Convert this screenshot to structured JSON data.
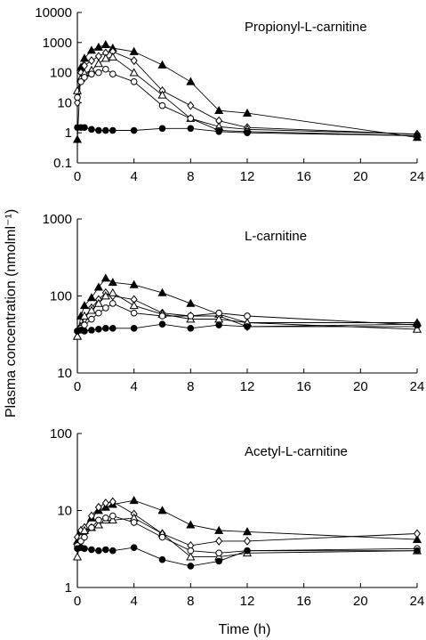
{
  "figure": {
    "ylabel": "Plasma concentration (nmolml⁻¹)",
    "xlabel": "Time (h)"
  },
  "chart_data": [
    {
      "type": "line",
      "title": "Propionyl-L-carnitine",
      "scale": "log",
      "ylim": [
        0.1,
        10000
      ],
      "xlim": [
        0,
        24
      ],
      "yticks": [
        "0.1",
        "1",
        "10",
        "100",
        "1000",
        "10000"
      ],
      "xticks": [
        "0",
        "4",
        "8",
        "12",
        "16",
        "20",
        "24"
      ],
      "series": [
        {
          "marker": "filled-triangle",
          "x": [
            0,
            0.25,
            0.5,
            1,
            1.5,
            2,
            2.5,
            4,
            6,
            8,
            10,
            12,
            24
          ],
          "y": [
            0.6,
            150,
            300,
            550,
            700,
            850,
            650,
            500,
            180,
            50,
            5.5,
            4.5,
            0.7
          ]
        },
        {
          "marker": "open-diamond",
          "x": [
            0,
            0.25,
            0.5,
            1,
            1.5,
            2,
            2.5,
            4,
            6,
            8,
            10,
            12,
            24
          ],
          "y": [
            10,
            100,
            170,
            250,
            350,
            450,
            500,
            250,
            25,
            8,
            2.5,
            1.5,
            0.9
          ]
        },
        {
          "marker": "open-triangle",
          "x": [
            0,
            0.25,
            0.5,
            1,
            1.5,
            2,
            2.5,
            4,
            6,
            8,
            10,
            12,
            24
          ],
          "y": [
            25,
            65,
            95,
            120,
            200,
            300,
            330,
            100,
            18,
            3,
            1.6,
            1.3,
            0.9
          ]
        },
        {
          "marker": "open-circle",
          "x": [
            0,
            0.25,
            0.5,
            1,
            1.5,
            2,
            2.5,
            4,
            6,
            8,
            10,
            12,
            24
          ],
          "y": [
            15,
            50,
            70,
            90,
            100,
            130,
            90,
            50,
            8,
            3,
            1.2,
            1.1,
            0.8
          ]
        },
        {
          "marker": "filled-circle",
          "x": [
            0,
            0.25,
            0.5,
            1,
            1.5,
            2,
            2.5,
            4,
            6,
            8,
            10,
            12,
            24
          ],
          "y": [
            1.5,
            1.5,
            1.5,
            1.3,
            1.2,
            1.2,
            1.2,
            1.2,
            1.4,
            1.4,
            1.1,
            1.0,
            0.8
          ]
        }
      ]
    },
    {
      "type": "line",
      "title": "L-carnitine",
      "scale": "log",
      "ylim": [
        10,
        1000
      ],
      "xlim": [
        0,
        24
      ],
      "yticks": [
        "10",
        "100",
        "1000"
      ],
      "xticks": [
        "0",
        "4",
        "8",
        "12",
        "16",
        "20",
        "24"
      ],
      "series": [
        {
          "marker": "filled-triangle",
          "x": [
            0,
            0.25,
            0.5,
            1,
            1.5,
            2,
            2.5,
            4,
            6,
            8,
            10,
            12,
            24
          ],
          "y": [
            30,
            55,
            75,
            95,
            130,
            170,
            150,
            140,
            110,
            80,
            58,
            45,
            45
          ]
        },
        {
          "marker": "open-diamond",
          "x": [
            0,
            0.25,
            0.5,
            1,
            1.5,
            2,
            2.5,
            4,
            6,
            8,
            10,
            12,
            24
          ],
          "y": [
            35,
            40,
            50,
            70,
            90,
            110,
            100,
            90,
            60,
            55,
            55,
            40,
            40
          ]
        },
        {
          "marker": "open-triangle",
          "x": [
            0,
            0.25,
            0.5,
            1,
            1.5,
            2,
            2.5,
            4,
            6,
            8,
            10,
            12,
            24
          ],
          "y": [
            30,
            40,
            55,
            65,
            80,
            100,
            110,
            75,
            58,
            50,
            50,
            45,
            37
          ]
        },
        {
          "marker": "open-circle",
          "x": [
            0,
            0.25,
            0.5,
            1,
            1.5,
            2,
            2.5,
            4,
            6,
            8,
            10,
            12,
            24
          ],
          "y": [
            35,
            38,
            42,
            50,
            60,
            70,
            80,
            60,
            55,
            55,
            60,
            55,
            42
          ]
        },
        {
          "marker": "filled-circle",
          "x": [
            0,
            0.25,
            0.5,
            1,
            1.5,
            2,
            2.5,
            4,
            6,
            8,
            10,
            12,
            24
          ],
          "y": [
            35,
            36,
            35,
            36,
            37,
            38,
            38,
            38,
            43,
            38,
            42,
            40,
            43
          ]
        }
      ]
    },
    {
      "type": "line",
      "title": "Acetyl-L-carnitine",
      "scale": "log",
      "ylim": [
        1,
        100
      ],
      "xlim": [
        0,
        24
      ],
      "yticks": [
        "1",
        "10",
        "100"
      ],
      "xticks": [
        "0",
        "4",
        "8",
        "12",
        "16",
        "20",
        "24"
      ],
      "series": [
        {
          "marker": "filled-triangle",
          "x": [
            0,
            0.25,
            0.5,
            1,
            1.5,
            2,
            2.5,
            4,
            6,
            8,
            10,
            12,
            24
          ],
          "y": [
            4.0,
            5.5,
            6.0,
            8.0,
            10.0,
            11.0,
            12.0,
            13.5,
            10.0,
            6.5,
            5.5,
            5.3,
            4.2
          ]
        },
        {
          "marker": "open-diamond",
          "x": [
            0,
            0.25,
            0.5,
            1,
            1.5,
            2,
            2.5,
            4,
            6,
            8,
            10,
            12,
            24
          ],
          "y": [
            4.5,
            5.5,
            6.0,
            8.5,
            11.0,
            12.5,
            13.0,
            9.0,
            5.0,
            3.5,
            4.0,
            4.0,
            5.0
          ]
        },
        {
          "marker": "open-triangle",
          "x": [
            0,
            0.25,
            0.5,
            1,
            1.5,
            2,
            2.5,
            4,
            6,
            8,
            10,
            12,
            24
          ],
          "y": [
            2.5,
            4.5,
            5.5,
            6.0,
            6.5,
            7.5,
            7.5,
            8.0,
            5.0,
            2.5,
            2.5,
            2.8,
            3.0
          ]
        },
        {
          "marker": "open-circle",
          "x": [
            0,
            0.25,
            0.5,
            1,
            1.5,
            2,
            2.5,
            4,
            6,
            8,
            10,
            12,
            24
          ],
          "y": [
            3.5,
            4.0,
            4.5,
            6.0,
            7.5,
            8.0,
            8.5,
            7.0,
            4.5,
            3.0,
            2.8,
            3.0,
            3.2
          ]
        },
        {
          "marker": "filled-circle",
          "x": [
            0,
            0.25,
            0.5,
            1,
            1.5,
            2,
            2.5,
            4,
            6,
            8,
            10,
            12,
            24
          ],
          "y": [
            3.2,
            3.3,
            3.2,
            3.1,
            3.0,
            3.1,
            3.0,
            3.3,
            2.3,
            1.9,
            2.2,
            3.0,
            3.0
          ]
        }
      ]
    }
  ]
}
